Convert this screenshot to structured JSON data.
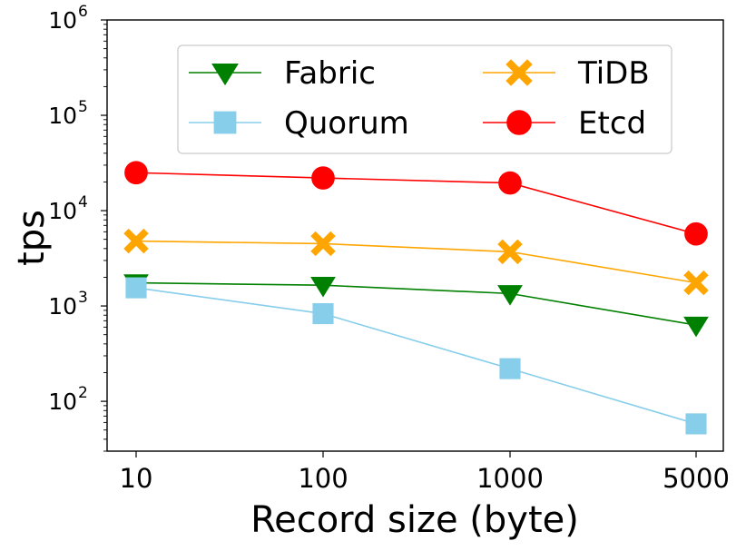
{
  "chart_data": {
    "type": "line",
    "xscale": "categorical",
    "yscale": "log",
    "categories": [
      "10",
      "100",
      "1000",
      "5000"
    ],
    "xlabel": "Record size (byte)",
    "ylabel": "tps",
    "ylim": [
      30,
      1000000
    ],
    "yticks": [
      {
        "value": 100,
        "base": "10",
        "exp": "2"
      },
      {
        "value": 1000,
        "base": "10",
        "exp": "3"
      },
      {
        "value": 10000,
        "base": "10",
        "exp": "4"
      },
      {
        "value": 100000,
        "base": "10",
        "exp": "5"
      },
      {
        "value": 1000000,
        "base": "10",
        "exp": "6"
      }
    ],
    "legend_position": "top-center",
    "legend_columns": 2,
    "series": [
      {
        "name": "Fabric",
        "color": "#008000",
        "marker": "triangle-down",
        "values": [
          1750,
          1650,
          1350,
          630
        ]
      },
      {
        "name": "Quorum",
        "color": "#87ceeb",
        "marker": "square",
        "values": [
          1550,
          830,
          220,
          58
        ]
      },
      {
        "name": "TiDB",
        "color": "#ffa500",
        "marker": "x-filled",
        "values": [
          4800,
          4500,
          3700,
          1750
        ]
      },
      {
        "name": "Etcd",
        "color": "#ff0000",
        "marker": "circle",
        "values": [
          25000,
          22000,
          19500,
          5700
        ]
      }
    ]
  }
}
